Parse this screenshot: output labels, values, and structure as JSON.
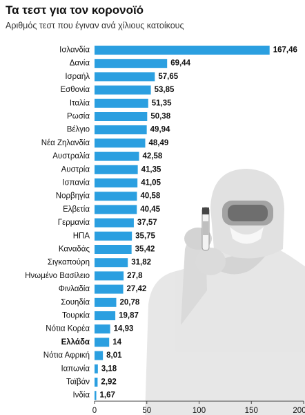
{
  "chart_data": {
    "type": "bar",
    "orientation": "horizontal",
    "title": "Τα τεστ για τον κορονοϊό",
    "subtitle": "Αριθμός τεστ που έγιναν ανά χίλιους κατοίκους",
    "categories": [
      "Ισλανδία",
      "Δανία",
      "Ισραήλ",
      "Εσθονία",
      "Ιταλία",
      "Ρωσία",
      "Βέλγιο",
      "Νέα Ζηλανδία",
      "Αυστραλία",
      "Αυστρία",
      "Ισπανία",
      "Νορβηγία",
      "Ελβετία",
      "Γερμανία",
      "ΗΠΑ",
      "Καναδάς",
      "Σιγκαπούρη",
      "Ηνωμένο Βασίλειο",
      "Φινλαδία",
      "Σουηδία",
      "Τουρκία",
      "Νότια Κορέα",
      "Ελλάδα",
      "Νότια Αφρική",
      "Ιαπωνία",
      "Ταϊβάν",
      "Ινδία"
    ],
    "values": [
      167.46,
      69.44,
      57.65,
      53.85,
      51.35,
      50.38,
      49.94,
      48.49,
      42.58,
      41.35,
      41.05,
      40.58,
      40.45,
      37.57,
      35.75,
      35.42,
      31.82,
      27.8,
      27.42,
      20.78,
      19.87,
      14.93,
      14,
      8.01,
      3.18,
      2.92,
      1.67
    ],
    "value_labels": [
      "167,46",
      "69,44",
      "57,65",
      "53,85",
      "51,35",
      "50,38",
      "49,94",
      "48,49",
      "42,58",
      "41,35",
      "41,05",
      "40,58",
      "40,45",
      "37,57",
      "35,75",
      "35,42",
      "31,82",
      "27,8",
      "27,42",
      "20,78",
      "19,87",
      "14,93",
      "14",
      "8,01",
      "3,18",
      "2,92",
      "1,67"
    ],
    "highlight_category": "Ελλάδα",
    "xlim": [
      0,
      200
    ],
    "xticks": [
      "0",
      "50",
      "100",
      "150",
      "200"
    ],
    "xtick_values": [
      0,
      50,
      100,
      150,
      200
    ],
    "grid": false,
    "colors": {
      "bar": "#2b9fe0",
      "text": "#111111",
      "axis": "#444444"
    }
  }
}
